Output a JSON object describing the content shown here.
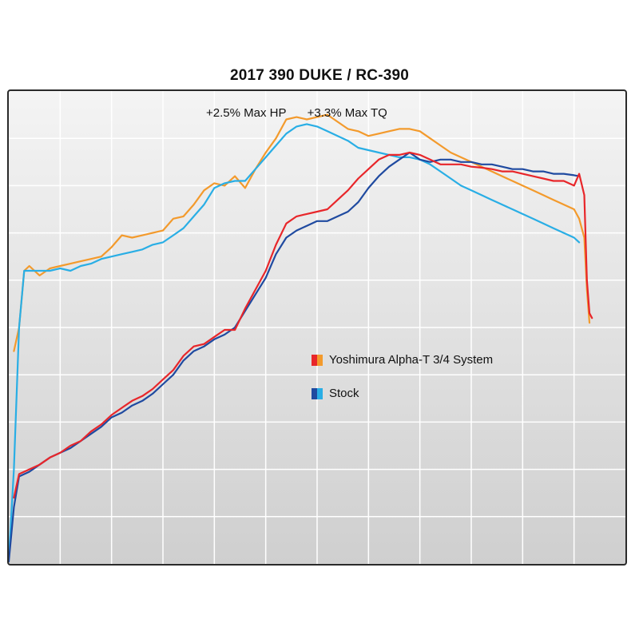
{
  "chart_data": {
    "type": "line",
    "title": "2017 390 DUKE / RC-390",
    "annotations": [
      "+2.5% Max HP",
      "+3.3% Max TQ"
    ],
    "xlabel": "",
    "ylabel": "",
    "xlim": [
      0,
      12
    ],
    "ylim": [
      0,
      10
    ],
    "grid": true,
    "legend": "center-right",
    "tick_labels_shown": false,
    "series": [
      {
        "name": "Yoshimura Alpha-T 3/4 System",
        "measure": "hp",
        "color": "#e8262a",
        "x": [
          0.1,
          0.2,
          0.4,
          0.6,
          0.8,
          1.0,
          1.2,
          1.4,
          1.6,
          1.8,
          2.0,
          2.2,
          2.4,
          2.6,
          2.8,
          3.0,
          3.2,
          3.4,
          3.6,
          3.8,
          4.0,
          4.2,
          4.4,
          4.6,
          4.8,
          5.0,
          5.2,
          5.4,
          5.6,
          5.8,
          6.0,
          6.2,
          6.4,
          6.6,
          6.8,
          7.0,
          7.2,
          7.4,
          7.6,
          7.8,
          8.0,
          8.2,
          8.4,
          8.6,
          8.8,
          9.0,
          9.2,
          9.4,
          9.6,
          9.8,
          10.0,
          10.2,
          10.4,
          10.6,
          10.8,
          11.0,
          11.1,
          11.2,
          11.25,
          11.3,
          11.35
        ],
        "values": [
          1.4,
          1.9,
          2.0,
          2.1,
          2.25,
          2.35,
          2.5,
          2.6,
          2.8,
          2.95,
          3.15,
          3.3,
          3.45,
          3.55,
          3.7,
          3.9,
          4.1,
          4.4,
          4.6,
          4.65,
          4.8,
          4.95,
          4.95,
          5.4,
          5.8,
          6.2,
          6.75,
          7.2,
          7.35,
          7.4,
          7.45,
          7.5,
          7.7,
          7.9,
          8.15,
          8.35,
          8.55,
          8.65,
          8.65,
          8.7,
          8.65,
          8.55,
          8.45,
          8.45,
          8.45,
          8.4,
          8.38,
          8.35,
          8.3,
          8.3,
          8.25,
          8.2,
          8.15,
          8.1,
          8.1,
          8.0,
          8.25,
          7.8,
          6.0,
          5.3,
          5.2
        ]
      },
      {
        "name": "Stock",
        "measure": "hp",
        "color": "#1f4aa0",
        "x": [
          0.0,
          0.1,
          0.2,
          0.4,
          0.6,
          0.8,
          1.0,
          1.2,
          1.4,
          1.6,
          1.8,
          2.0,
          2.2,
          2.4,
          2.6,
          2.8,
          3.0,
          3.2,
          3.4,
          3.6,
          3.8,
          4.0,
          4.2,
          4.4,
          4.6,
          4.8,
          5.0,
          5.2,
          5.4,
          5.6,
          5.8,
          6.0,
          6.2,
          6.4,
          6.6,
          6.8,
          7.0,
          7.2,
          7.4,
          7.6,
          7.8,
          8.0,
          8.2,
          8.4,
          8.6,
          8.8,
          9.0,
          9.2,
          9.4,
          9.6,
          9.8,
          10.0,
          10.2,
          10.4,
          10.6,
          10.8,
          11.0,
          11.1
        ],
        "values": [
          0.05,
          1.2,
          1.85,
          1.95,
          2.1,
          2.25,
          2.35,
          2.45,
          2.6,
          2.75,
          2.9,
          3.1,
          3.2,
          3.35,
          3.45,
          3.6,
          3.8,
          4.0,
          4.3,
          4.5,
          4.6,
          4.75,
          4.85,
          5.0,
          5.35,
          5.7,
          6.05,
          6.55,
          6.9,
          7.05,
          7.15,
          7.25,
          7.25,
          7.35,
          7.45,
          7.65,
          7.95,
          8.2,
          8.4,
          8.55,
          8.7,
          8.55,
          8.5,
          8.55,
          8.55,
          8.5,
          8.5,
          8.45,
          8.45,
          8.4,
          8.35,
          8.35,
          8.3,
          8.3,
          8.25,
          8.25,
          8.22,
          8.2
        ]
      },
      {
        "name": "Yoshimura Alpha-T 3/4 System",
        "measure": "tq",
        "color": "#f39a2c",
        "x": [
          0.1,
          0.2,
          0.3,
          0.4,
          0.6,
          0.8,
          1.0,
          1.2,
          1.4,
          1.6,
          1.8,
          2.0,
          2.2,
          2.4,
          2.6,
          2.8,
          3.0,
          3.2,
          3.4,
          3.6,
          3.8,
          4.0,
          4.2,
          4.4,
          4.6,
          4.8,
          5.0,
          5.2,
          5.4,
          5.6,
          5.8,
          6.0,
          6.2,
          6.4,
          6.6,
          6.8,
          7.0,
          7.2,
          7.4,
          7.6,
          7.8,
          8.0,
          8.2,
          8.4,
          8.6,
          8.8,
          9.0,
          9.2,
          9.4,
          9.6,
          9.8,
          10.0,
          10.2,
          10.4,
          10.6,
          10.8,
          11.0,
          11.1,
          11.2,
          11.25,
          11.3
        ],
        "values": [
          4.5,
          5.0,
          6.2,
          6.3,
          6.1,
          6.25,
          6.3,
          6.35,
          6.4,
          6.45,
          6.5,
          6.7,
          6.95,
          6.9,
          6.95,
          7.0,
          7.05,
          7.3,
          7.35,
          7.6,
          7.9,
          8.05,
          8.0,
          8.2,
          7.95,
          8.35,
          8.7,
          9.0,
          9.4,
          9.45,
          9.4,
          9.45,
          9.5,
          9.35,
          9.2,
          9.15,
          9.05,
          9.1,
          9.15,
          9.2,
          9.2,
          9.15,
          9.0,
          8.85,
          8.7,
          8.6,
          8.5,
          8.4,
          8.3,
          8.2,
          8.1,
          8.0,
          7.9,
          7.8,
          7.7,
          7.6,
          7.5,
          7.3,
          6.9,
          5.8,
          5.1
        ]
      },
      {
        "name": "Stock",
        "measure": "tq",
        "color": "#29aee5",
        "x": [
          0.0,
          0.1,
          0.2,
          0.3,
          0.4,
          0.6,
          0.8,
          1.0,
          1.2,
          1.4,
          1.6,
          1.8,
          2.0,
          2.2,
          2.4,
          2.6,
          2.8,
          3.0,
          3.2,
          3.4,
          3.6,
          3.8,
          4.0,
          4.2,
          4.4,
          4.6,
          4.8,
          5.0,
          5.2,
          5.4,
          5.6,
          5.8,
          6.0,
          6.2,
          6.4,
          6.6,
          6.8,
          7.0,
          7.2,
          7.4,
          7.6,
          7.8,
          8.0,
          8.2,
          8.4,
          8.6,
          8.8,
          9.0,
          9.2,
          9.4,
          9.6,
          9.8,
          10.0,
          10.2,
          10.4,
          10.6,
          10.8,
          11.0,
          11.1
        ],
        "values": [
          0.1,
          2.0,
          5.0,
          6.2,
          6.2,
          6.2,
          6.2,
          6.25,
          6.2,
          6.3,
          6.35,
          6.45,
          6.5,
          6.55,
          6.6,
          6.65,
          6.75,
          6.8,
          6.95,
          7.1,
          7.35,
          7.6,
          7.95,
          8.05,
          8.1,
          8.1,
          8.35,
          8.6,
          8.85,
          9.1,
          9.25,
          9.3,
          9.25,
          9.15,
          9.05,
          8.95,
          8.8,
          8.75,
          8.7,
          8.65,
          8.6,
          8.6,
          8.55,
          8.45,
          8.3,
          8.15,
          8.0,
          7.9,
          7.8,
          7.7,
          7.6,
          7.5,
          7.4,
          7.3,
          7.2,
          7.1,
          7.0,
          6.9,
          6.8
        ]
      }
    ]
  }
}
